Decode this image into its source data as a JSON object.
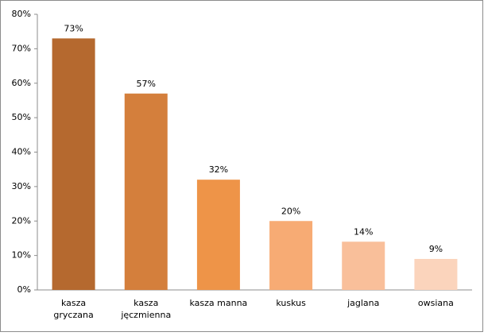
{
  "chart_data": {
    "type": "bar",
    "categories": [
      "kasza gryczana",
      "kasza jęczmienna",
      "kasza manna",
      "kuskus",
      "jaglana",
      "owsiana"
    ],
    "values": [
      73,
      57,
      32,
      20,
      14,
      9
    ],
    "value_labels": [
      "73%",
      "57%",
      "32%",
      "20%",
      "14%",
      "9%"
    ],
    "colors": [
      "#b5692f",
      "#d47f3c",
      "#ee9448",
      "#f7ab74",
      "#f9bf9a",
      "#fbd4bc"
    ],
    "ylim": [
      0,
      80
    ],
    "yticks": [
      {
        "value": 0,
        "label": "0%"
      },
      {
        "value": 10,
        "label": "10%"
      },
      {
        "value": 20,
        "label": "20%"
      },
      {
        "value": 30,
        "label": "30%"
      },
      {
        "value": 40,
        "label": "40%"
      },
      {
        "value": 50,
        "label": "50%"
      },
      {
        "value": 60,
        "label": "60%"
      },
      {
        "value": 70,
        "label": "70%"
      },
      {
        "value": 80,
        "label": "80%"
      }
    ],
    "grid": false
  }
}
